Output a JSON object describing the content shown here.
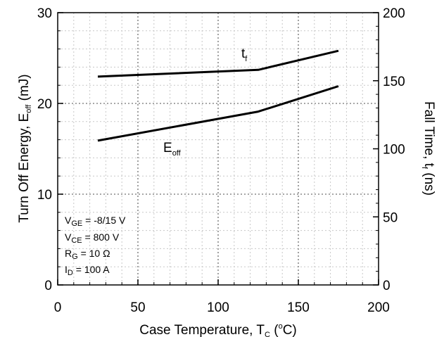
{
  "chart_data": {
    "type": "line",
    "xlabel": {
      "main": "Case Temperature, T",
      "sub": "C",
      "open": " (",
      "sup": "o",
      "close": "C)"
    },
    "ylabel_left": {
      "main": "Turn Off Energy, E",
      "sub": "off",
      "tail": " (mJ)"
    },
    "ylabel_right": {
      "main": "Fall Time, t",
      "sub": "f",
      "tail": " (ns)"
    },
    "xlim": [
      0,
      200
    ],
    "ylim_left": [
      0,
      30
    ],
    "ylim_right": [
      0,
      200
    ],
    "xticks": [
      "0",
      "50",
      "100",
      "150",
      "200"
    ],
    "yticks_left": [
      "0",
      "10",
      "20",
      "30"
    ],
    "yticks_right": [
      "0",
      "50",
      "100",
      "150",
      "200"
    ],
    "grid": true,
    "series": [
      {
        "name": "E",
        "name_sub": "off",
        "axis": "left",
        "x": [
          25,
          125,
          175
        ],
        "values": [
          15.9,
          19.1,
          21.9
        ]
      },
      {
        "name": "t",
        "name_sub": "f",
        "axis": "right",
        "x": [
          25,
          125,
          175
        ],
        "values": [
          153,
          158,
          172
        ]
      }
    ],
    "conditions": [
      {
        "main": "V",
        "sub": "GE",
        "rest": " = -8/15 V"
      },
      {
        "main": "V",
        "sub": "CE",
        "rest": " = 800 V"
      },
      {
        "main": "R",
        "sub": "G",
        "rest": " = 10 Ω"
      },
      {
        "main": "I",
        "sub": "D",
        "rest": " = 100 A"
      }
    ]
  }
}
